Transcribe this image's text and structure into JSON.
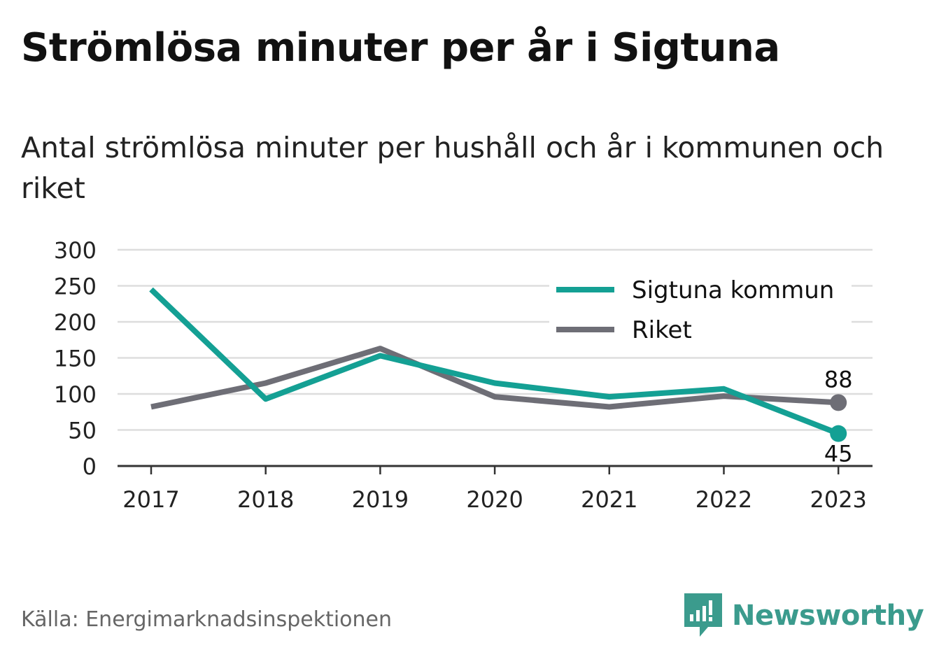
{
  "header": {
    "title": "Strömlösa minuter per år i Sigtuna",
    "subtitle": "Antal strömlösa minuter per hushåll och år i kommunen och riket"
  },
  "footer": {
    "source": "Källa: Energimarknadsinspektionen",
    "brand": "Newsworthy",
    "brand_icon": "newsworthy-logo-icon"
  },
  "colors": {
    "sigtuna": "#14a094",
    "riket": "#6e6e76",
    "grid": "#dddddd",
    "axis": "#333333",
    "brand": "#3b9b8d"
  },
  "chart_data": {
    "type": "line",
    "title": "Strömlösa minuter per år i Sigtuna",
    "x": [
      "2017",
      "2018",
      "2019",
      "2020",
      "2021",
      "2022",
      "2023"
    ],
    "ylim": [
      0,
      300
    ],
    "yticks": [
      "0",
      "50",
      "100",
      "150",
      "200",
      "250",
      "300"
    ],
    "grid": true,
    "legend": "top-right",
    "series": [
      {
        "name": "Sigtuna kommun",
        "color": "#14a094",
        "values": [
          245,
          93,
          153,
          115,
          96,
          107,
          45
        ],
        "end_label": "45"
      },
      {
        "name": "Riket",
        "color": "#6e6e76",
        "values": [
          82,
          115,
          163,
          96,
          82,
          97,
          88
        ],
        "end_label": "88"
      }
    ]
  }
}
